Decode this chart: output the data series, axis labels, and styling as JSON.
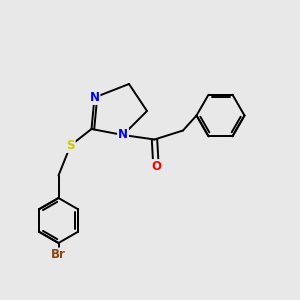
{
  "background_color": "#e8e8e8",
  "bond_color": "#000000",
  "atom_colors": {
    "N": "#0000ff",
    "O": "#ff0000",
    "S": "#cccc00",
    "Br": "#8b4513",
    "C": "#000000"
  },
  "figsize": [
    3.0,
    3.0
  ],
  "dpi": 100,
  "lw": 1.4,
  "fs": 8.5
}
